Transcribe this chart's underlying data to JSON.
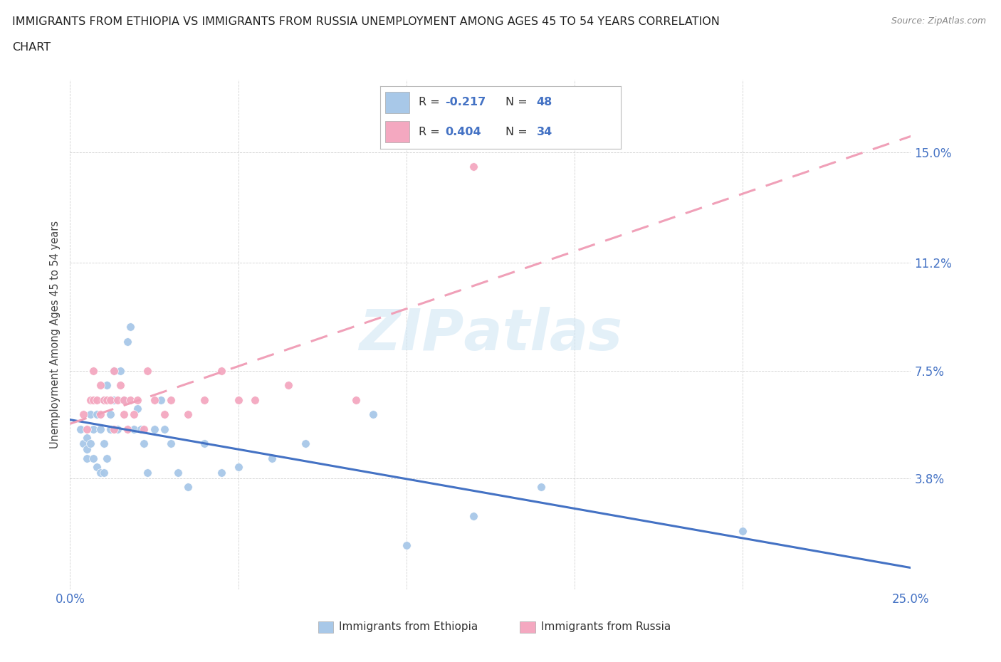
{
  "title_line1": "IMMIGRANTS FROM ETHIOPIA VS IMMIGRANTS FROM RUSSIA UNEMPLOYMENT AMONG AGES 45 TO 54 YEARS CORRELATION",
  "title_line2": "CHART",
  "source": "Source: ZipAtlas.com",
  "ylabel": "Unemployment Among Ages 45 to 54 years",
  "xlim": [
    0.0,
    0.25
  ],
  "ylim": [
    0.0,
    0.175
  ],
  "xtick_positions": [
    0.0,
    0.05,
    0.1,
    0.15,
    0.2,
    0.25
  ],
  "xticklabels": [
    "0.0%",
    "",
    "",
    "",
    "",
    "25.0%"
  ],
  "ytick_positions": [
    0.038,
    0.075,
    0.112,
    0.15
  ],
  "ytick_labels": [
    "3.8%",
    "7.5%",
    "11.2%",
    "15.0%"
  ],
  "legend_label1": "Immigrants from Ethiopia",
  "legend_label2": "Immigrants from Russia",
  "r1": -0.217,
  "n1": 48,
  "r2": 0.404,
  "n2": 34,
  "color_ethiopia": "#a8c8e8",
  "color_russia": "#f4a8c0",
  "color_eth_line": "#4472c4",
  "color_rus_line": "#f4a8c0",
  "color_label": "#4472c4",
  "watermark": "ZIPatlas",
  "ethiopia_x": [
    0.003,
    0.004,
    0.005,
    0.005,
    0.005,
    0.006,
    0.006,
    0.007,
    0.007,
    0.008,
    0.008,
    0.009,
    0.009,
    0.01,
    0.01,
    0.01,
    0.011,
    0.011,
    0.012,
    0.012,
    0.013,
    0.013,
    0.014,
    0.015,
    0.016,
    0.017,
    0.018,
    0.019,
    0.02,
    0.021,
    0.022,
    0.023,
    0.025,
    0.027,
    0.028,
    0.03,
    0.032,
    0.035,
    0.04,
    0.045,
    0.05,
    0.06,
    0.07,
    0.09,
    0.1,
    0.12,
    0.14,
    0.2
  ],
  "ethiopia_y": [
    0.055,
    0.05,
    0.048,
    0.052,
    0.045,
    0.05,
    0.06,
    0.045,
    0.055,
    0.06,
    0.042,
    0.04,
    0.055,
    0.04,
    0.05,
    0.065,
    0.07,
    0.045,
    0.055,
    0.06,
    0.065,
    0.075,
    0.055,
    0.075,
    0.065,
    0.085,
    0.09,
    0.055,
    0.062,
    0.055,
    0.05,
    0.04,
    0.055,
    0.065,
    0.055,
    0.05,
    0.04,
    0.035,
    0.05,
    0.04,
    0.042,
    0.045,
    0.05,
    0.06,
    0.015,
    0.025,
    0.035,
    0.02
  ],
  "russia_x": [
    0.004,
    0.005,
    0.006,
    0.007,
    0.007,
    0.008,
    0.009,
    0.009,
    0.01,
    0.011,
    0.012,
    0.013,
    0.013,
    0.014,
    0.015,
    0.016,
    0.016,
    0.017,
    0.018,
    0.019,
    0.02,
    0.022,
    0.023,
    0.025,
    0.028,
    0.03,
    0.035,
    0.04,
    0.045,
    0.05,
    0.055,
    0.065,
    0.085,
    0.12
  ],
  "russia_y": [
    0.06,
    0.055,
    0.065,
    0.065,
    0.075,
    0.065,
    0.07,
    0.06,
    0.065,
    0.065,
    0.065,
    0.075,
    0.055,
    0.065,
    0.07,
    0.06,
    0.065,
    0.055,
    0.065,
    0.06,
    0.065,
    0.055,
    0.075,
    0.065,
    0.06,
    0.065,
    0.06,
    0.065,
    0.075,
    0.065,
    0.065,
    0.07,
    0.065,
    0.145
  ]
}
